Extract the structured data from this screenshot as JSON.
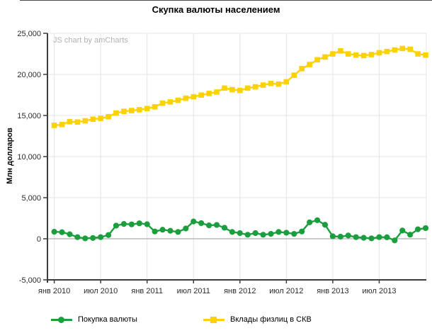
{
  "title": "Скупка валюты населением",
  "watermark": "JS chart by amCharts",
  "chart_data": {
    "type": "line",
    "title": "Скупка валюты населением",
    "xlabel": "",
    "ylabel": "Млн долларов",
    "ylim": [
      -5000,
      25000
    ],
    "grid": true,
    "legend_position": "bottom",
    "x_unit": "month",
    "x_range": "янв 2010 — янв 2014",
    "x_tick_labels": [
      "янв 2010",
      "июл 2010",
      "янв 2011",
      "июл 2011",
      "янв 2012",
      "июл 2012",
      "янв 2013",
      "июл 2013"
    ],
    "x_tick_indices": [
      0,
      6,
      12,
      18,
      24,
      30,
      36,
      42
    ],
    "y_tick_labels": [
      "25,000",
      "20,000",
      "15,000",
      "10,000",
      "5,000",
      "0",
      "-5,000"
    ],
    "y_tick_values": [
      25000,
      20000,
      15000,
      10000,
      5000,
      0,
      -5000
    ],
    "series": [
      {
        "name": "Покупка валюты",
        "color": "#1b9e3e",
        "marker": "circle",
        "values": [
          850,
          800,
          550,
          200,
          50,
          100,
          200,
          450,
          1600,
          1800,
          1750,
          1880,
          1770,
          890,
          1100,
          970,
          830,
          1250,
          2100,
          1900,
          1630,
          1680,
          1340,
          830,
          690,
          490,
          690,
          490,
          600,
          830,
          740,
          600,
          890,
          2000,
          2250,
          1700,
          300,
          260,
          400,
          200,
          120,
          50,
          200,
          180,
          -200,
          1000,
          500,
          1150,
          1300
        ]
      },
      {
        "name": "Вклады физлиц в СКВ",
        "color": "#fcd202",
        "marker": "square",
        "values": [
          13800,
          13900,
          14250,
          14200,
          14350,
          14550,
          14650,
          14850,
          15300,
          15500,
          15600,
          15700,
          15850,
          16050,
          16500,
          16650,
          16850,
          17100,
          17280,
          17480,
          17680,
          17850,
          18330,
          18140,
          18050,
          18330,
          18480,
          18700,
          18900,
          18820,
          19100,
          19900,
          20700,
          21200,
          21780,
          22120,
          22490,
          22860,
          22490,
          22350,
          22290,
          22410,
          22630,
          22780,
          22970,
          23150,
          23060,
          22490,
          22350
        ]
      }
    ],
    "colors": {
      "grid": "#e4e4e4",
      "zero_line": "#999999",
      "axis": "#3c3c3c",
      "tick_text": "#2b2b2b"
    }
  },
  "legend": {
    "items": [
      {
        "label": "Покупка валюты",
        "color": "#1b9e3e",
        "marker": "circle"
      },
      {
        "label": "Вклады физлиц в СКВ",
        "color": "#fcd202",
        "marker": "square"
      }
    ]
  }
}
